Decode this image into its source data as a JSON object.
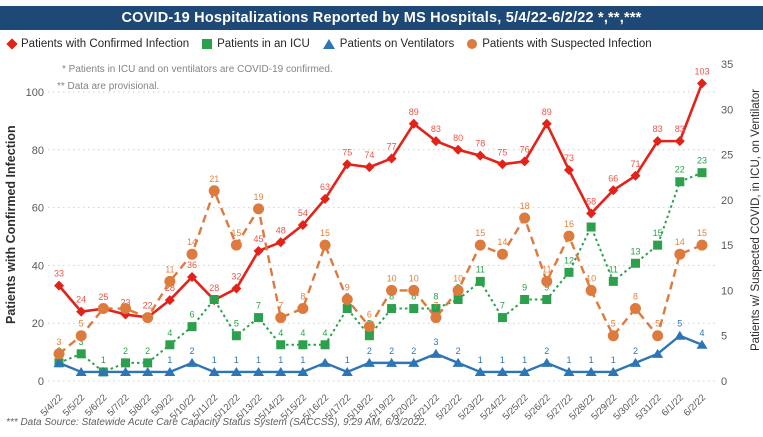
{
  "title": "COVID-19 Hospitalizations Reported by MS Hospitals, 5/4/22-6/2/22 *,**,***",
  "title_bar_color": "#1E4875",
  "annotations": {
    "note1": "* Patients in ICU and on ventilators are COVID-19 confirmed.",
    "note2": "** Data are provisional."
  },
  "footnote": "*** Data Source: Statewide Acute Care Capacity Status System (SACCSS), 9:29 AM, 6/3/2022.",
  "chart_data": {
    "type": "line",
    "x": [
      "5/4/22",
      "5/5/22",
      "5/6/22",
      "5/7/22",
      "5/8/22",
      "5/9/22",
      "5/10/22",
      "5/11/22",
      "5/12/22",
      "5/13/22",
      "5/14/22",
      "5/15/22",
      "5/16/22",
      "5/17/22",
      "5/18/22",
      "5/19/22",
      "5/20/22",
      "5/21/22",
      "5/22/22",
      "5/23/22",
      "5/24/22",
      "5/25/22",
      "5/26/22",
      "5/27/22",
      "5/28/22",
      "5/29/22",
      "5/30/22",
      "5/31/22",
      "6/1/22",
      "6/2/22"
    ],
    "y_left": {
      "label": "Patients with Confirmed Infection",
      "min": 0,
      "max": 100,
      "step": 20
    },
    "y_right": {
      "label": "Patients w/ Suspected COVID, in ICU, on Ventilator",
      "min": 0,
      "max": 35,
      "step": 5
    },
    "grid": "horizontal-dotted",
    "legend_position": "top",
    "series": [
      {
        "name": "Patients with Confirmed Infection",
        "axis": "left",
        "marker": "diamond",
        "line_style": "solid",
        "color": "#E2231A",
        "label_color": "#F0544A",
        "values": [
          33,
          24,
          25,
          23,
          22,
          28,
          36,
          28,
          32,
          45,
          48,
          54,
          63,
          75,
          74,
          77,
          89,
          83,
          80,
          78,
          75,
          76,
          89,
          73,
          58,
          66,
          71,
          83,
          83,
          103
        ],
        "labels": [
          "33",
          "24",
          "25",
          "23",
          "22",
          "28",
          "36",
          "28",
          "32",
          "45",
          "48",
          "54",
          "63",
          "75",
          "74",
          "77",
          "89",
          "83",
          "80",
          "78",
          "75",
          "76",
          "89",
          "73",
          "58",
          "66",
          "71",
          "83",
          "83",
          "103"
        ]
      },
      {
        "name": "Patients in an ICU",
        "axis": "right",
        "marker": "square",
        "line_style": "dotted",
        "color": "#2CA04C",
        "label_color": "#2CA04C",
        "values": [
          2,
          3,
          1,
          2,
          2,
          4,
          6,
          9,
          5,
          7,
          4,
          4,
          4,
          8,
          5,
          8,
          8,
          8,
          9,
          11,
          7,
          9,
          9,
          12,
          17,
          11,
          13,
          15,
          22,
          23
        ],
        "labels": [
          "2",
          "3",
          "1",
          "2",
          "2",
          "4",
          "6",
          null,
          "5",
          "7",
          "4",
          "4",
          "4",
          "8",
          "5",
          "8",
          "8",
          "8",
          "9",
          "11",
          "7",
          "9",
          "9",
          "12",
          null,
          "11",
          "13",
          "15",
          "22",
          "23"
        ]
      },
      {
        "name": "Patients on Ventilators",
        "axis": "right",
        "marker": "triangle",
        "line_style": "solid",
        "color": "#2E75B6",
        "label_color": "#2E75B6",
        "values": [
          2,
          1,
          1,
          1,
          1,
          1,
          2,
          1,
          1,
          1,
          1,
          1,
          2,
          1,
          2,
          2,
          2,
          3,
          2,
          1,
          1,
          1,
          2,
          1,
          1,
          1,
          2,
          3,
          5,
          4
        ],
        "labels": [
          null,
          null,
          null,
          null,
          null,
          "1",
          "2",
          "1",
          "1",
          "1",
          "1",
          "1",
          null,
          "1",
          "2",
          "2",
          "2",
          "3",
          "2",
          "1",
          "1",
          "1",
          "2",
          "1",
          "1",
          "1",
          "2",
          null,
          "5",
          "4"
        ]
      },
      {
        "name": "Patients with Suspected Infection",
        "axis": "right",
        "marker": "circle",
        "line_style": "dashed",
        "color": "#DD7A3D",
        "label_color": "#E8823C",
        "values": [
          3,
          5,
          8,
          8,
          7,
          11,
          14,
          21,
          15,
          19,
          7,
          8,
          15,
          9,
          6,
          10,
          10,
          7,
          10,
          15,
          14,
          18,
          11,
          16,
          10,
          5,
          8,
          5,
          14,
          15
        ],
        "labels": [
          "3",
          "5",
          null,
          null,
          null,
          "11",
          "14",
          "21",
          "15",
          "19",
          "7",
          "8",
          "15",
          "9",
          "6",
          "10",
          "10",
          "7",
          "10",
          "15",
          "14",
          "18",
          "11",
          "16",
          "10",
          "5",
          "8",
          "5",
          "14",
          "15"
        ]
      }
    ]
  }
}
